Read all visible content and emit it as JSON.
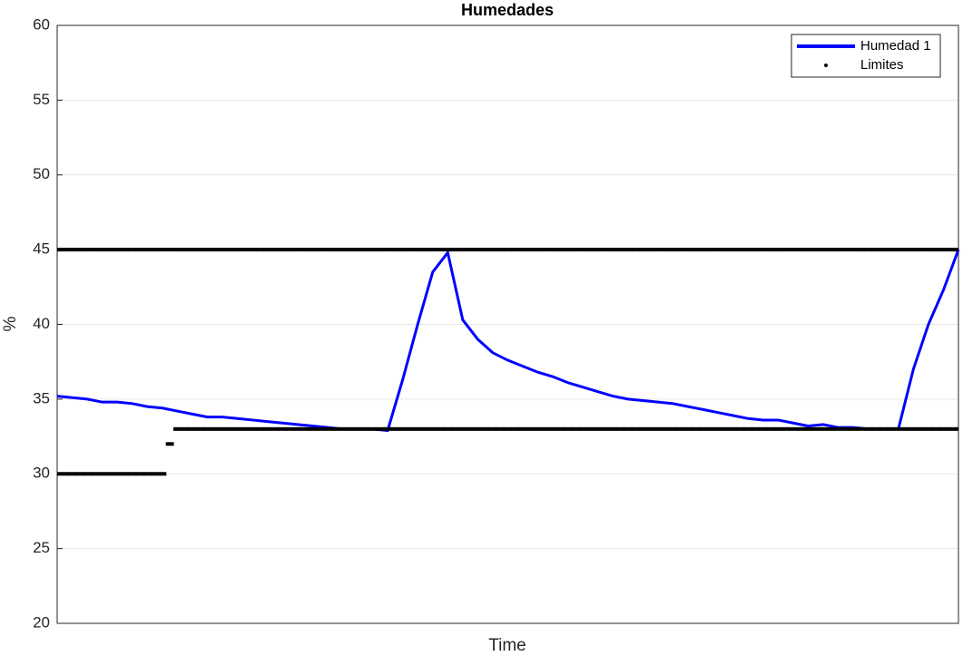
{
  "chart_data": {
    "type": "line",
    "title": "Humedades",
    "xlabel": "Time",
    "ylabel": "%",
    "ylim": [
      20,
      60
    ],
    "yticks": [
      20,
      25,
      30,
      35,
      40,
      45,
      50,
      55,
      60
    ],
    "grid": true,
    "legend": "northeast",
    "series": [
      {
        "name": "Humedad 1",
        "color": "#0000ff",
        "style": "line",
        "values": [
          35.2,
          35.1,
          35.0,
          34.8,
          34.8,
          34.7,
          34.5,
          34.4,
          34.2,
          34.0,
          33.8,
          33.8,
          33.7,
          33.6,
          33.5,
          33.4,
          33.3,
          33.2,
          33.1,
          33.0,
          33.0,
          33.0,
          32.9,
          36.3,
          40.0,
          43.5,
          44.8,
          40.3,
          39.0,
          38.1,
          37.6,
          37.2,
          36.8,
          36.5,
          36.1,
          35.8,
          35.5,
          35.2,
          35.0,
          34.9,
          34.8,
          34.7,
          34.5,
          34.3,
          34.1,
          33.9,
          33.7,
          33.6,
          33.6,
          33.4,
          33.2,
          33.3,
          33.1,
          33.1,
          33.0,
          33.0,
          33.0,
          37.0,
          40.0,
          42.3,
          45.0
        ]
      },
      {
        "name": "Limites",
        "color": "#000000",
        "style": "dots",
        "lower": [
          30,
          30,
          30,
          30,
          30,
          30,
          30,
          30,
          30,
          30,
          30,
          30,
          30,
          30,
          30,
          32,
          33,
          33,
          33,
          33,
          33,
          33,
          33,
          33,
          33,
          33,
          33,
          33,
          33,
          33,
          33,
          33,
          33,
          33,
          33,
          33,
          33,
          33,
          33,
          33,
          33,
          33,
          33,
          33,
          33,
          33,
          33,
          33,
          33,
          33,
          33,
          33,
          33,
          33,
          33,
          33,
          33,
          33,
          33,
          33,
          33,
          33,
          33,
          33,
          33,
          33,
          33,
          33,
          33,
          33,
          33,
          33,
          33,
          33,
          33,
          33,
          33,
          33,
          33,
          33,
          33,
          33,
          33,
          33,
          33,
          33,
          33,
          33,
          33,
          33,
          33,
          33,
          33,
          33,
          33,
          33,
          33,
          33,
          33,
          33,
          33,
          33,
          33,
          33,
          33,
          33,
          33,
          33,
          33,
          33,
          33,
          33,
          33,
          33,
          33,
          33,
          33,
          33,
          33,
          33,
          33
        ],
        "upper": [
          45,
          45,
          45,
          45,
          45,
          45,
          45,
          45,
          45,
          45,
          45,
          45,
          45,
          45,
          45,
          45,
          45,
          45,
          45,
          45,
          45,
          45,
          45,
          45,
          45,
          45,
          45,
          45,
          45,
          45,
          45,
          45,
          45,
          45,
          45,
          45,
          45,
          45,
          45,
          45,
          45,
          45,
          45,
          45,
          45,
          45,
          45,
          45,
          45,
          45,
          45,
          45,
          45,
          45,
          45,
          45,
          45,
          45,
          45,
          45,
          45,
          45,
          45,
          45,
          45,
          45,
          45,
          45,
          45,
          45,
          45,
          45,
          45,
          45,
          45,
          45,
          45,
          45,
          45,
          45,
          45,
          45,
          45,
          45,
          45,
          45,
          45,
          45,
          45,
          45,
          45,
          45,
          45,
          45,
          45,
          45,
          45,
          45,
          45,
          45,
          45,
          45,
          45,
          45,
          45,
          45,
          45,
          45,
          45,
          45,
          45,
          45,
          45,
          45,
          45,
          45,
          45,
          45,
          45,
          45,
          45
        ]
      }
    ]
  }
}
